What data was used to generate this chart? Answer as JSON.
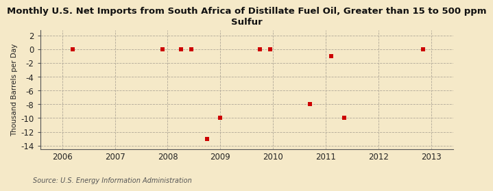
{
  "title": "Monthly U.S. Net Imports from South Africa of Distillate Fuel Oil, Greater than 15 to 500 ppm\nSulfur",
  "ylabel": "Thousand Barrels per Day",
  "source": "Source: U.S. Energy Information Administration",
  "background_color": "#f5e9c8",
  "plot_bg_color": "#f5e9c8",
  "marker_color": "#cc0000",
  "marker_size": 4,
  "xlim": [
    2005.58,
    2013.42
  ],
  "ylim": [
    -14.5,
    2.8
  ],
  "yticks": [
    2,
    0,
    -2,
    -4,
    -6,
    -8,
    -10,
    -12,
    -14
  ],
  "xticks": [
    2006,
    2007,
    2008,
    2009,
    2010,
    2011,
    2012,
    2013
  ],
  "x_data": [
    2006.2,
    2007.9,
    2008.25,
    2008.45,
    2008.75,
    2009.0,
    2009.75,
    2009.95,
    2010.7,
    2011.1,
    2011.35,
    2012.85
  ],
  "y_data": [
    0,
    0,
    0,
    0,
    -13,
    -10,
    0,
    0,
    -8,
    -1,
    -10,
    0
  ],
  "title_fontsize": 9.5,
  "tick_fontsize": 8.5,
  "ylabel_fontsize": 7.5,
  "source_fontsize": 7
}
